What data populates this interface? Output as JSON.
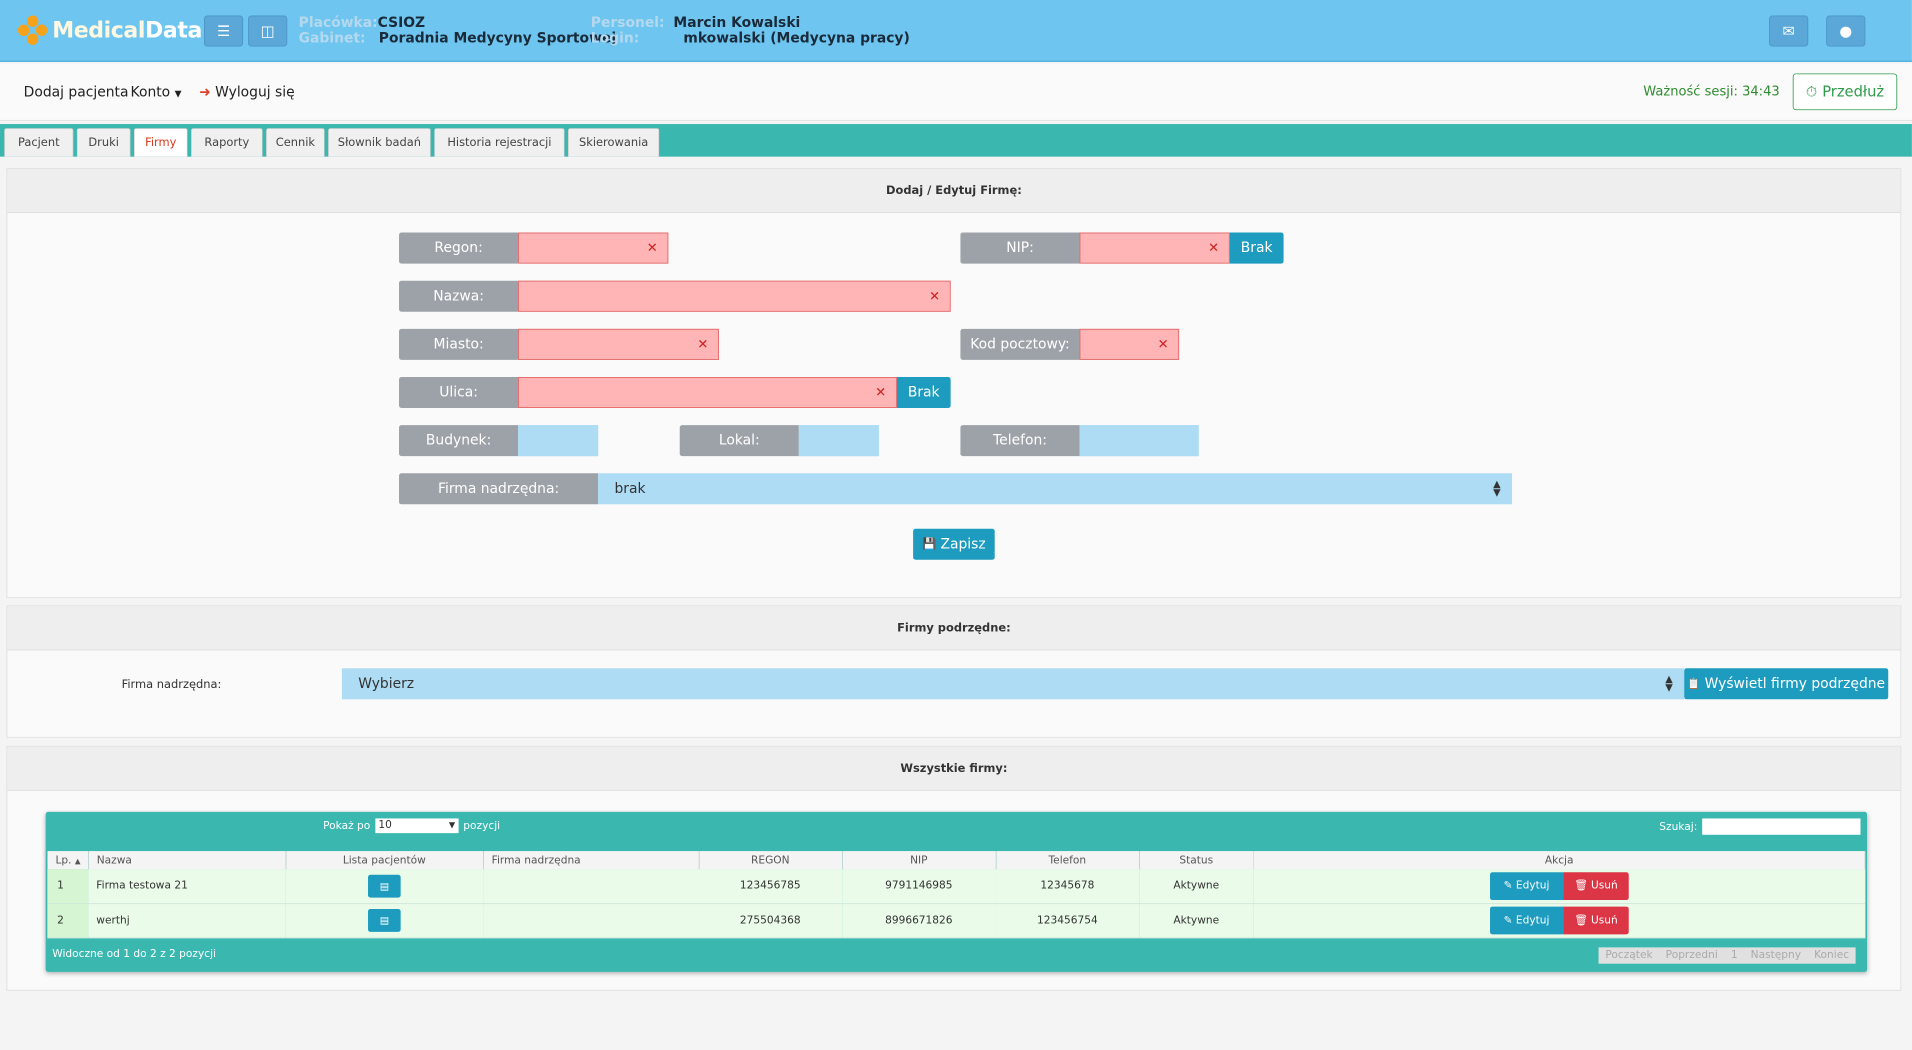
{
  "header": {
    "logo_text_1": "Medical",
    "logo_text_2": "Data",
    "placowka_label": "Placówka:",
    "placowka_value": "CSIOZ",
    "gabinet_label": "Gabinet:",
    "gabinet_value": "Poradnia Medycyny Sportowej",
    "personel_label": "Personel:",
    "personel_value": "Marcin Kowalski",
    "login_label": "Login:",
    "login_value": "mkowalski (Medycyna pracy)"
  },
  "menu": {
    "add_patient": "Dodaj pacjenta",
    "account": "Konto",
    "logout": "Wyloguj się",
    "session_label": "Ważność sesji: 34:43",
    "extend": "Przedłuż"
  },
  "tabs": [
    "Pacjent",
    "Druki",
    "Firmy",
    "Raporty",
    "Cennik",
    "Słownik badań",
    "Historia rejestracji",
    "Skierowania"
  ],
  "form": {
    "title": "Dodaj / Edytuj Firmę:",
    "regon": "Regon:",
    "nip": "NIP:",
    "brak": "Brak",
    "nazwa": "Nazwa:",
    "miasto": "Miasto:",
    "kod": "Kod pocztowy:",
    "ulica": "Ulica:",
    "budynek": "Budynek:",
    "lokal": "Lokal:",
    "telefon": "Telefon:",
    "firma_nadrzedna": "Firma nadrzędna:",
    "firma_nadrzedna_value": "brak",
    "save": "Zapisz"
  },
  "sub": {
    "title": "Firmy podrzędne:",
    "label": "Firma nadrzędna:",
    "select_value": "Wybierz",
    "show_btn": "Wyświetl firmy podrzędne"
  },
  "all": {
    "title": "Wszystkie firmy:",
    "show_prefix": "Pokaż po",
    "show_value": "10",
    "show_suffix": "pozycji",
    "search_label": "Szukaj:",
    "columns": [
      "Lp.",
      "Nazwa",
      "Lista pacjentów",
      "Firma nadrzędna",
      "REGON",
      "NIP",
      "Telefon",
      "Status",
      "Akcja"
    ],
    "rows": [
      {
        "lp": "1",
        "nazwa": "Firma testowa 21",
        "nadrzedna": "",
        "regon": "123456785",
        "nip": "9791146985",
        "telefon": "12345678",
        "status": "Aktywne"
      },
      {
        "lp": "2",
        "nazwa": "werthj",
        "nadrzedna": "",
        "regon": "275504368",
        "nip": "8996671826",
        "telefon": "123456754",
        "status": "Aktywne"
      }
    ],
    "edit": "Edytuj",
    "delete": "Usuń",
    "footer_info": "Widoczne od 1 do 2 z 2 pozycji",
    "pager": [
      "Początek",
      "Poprzedni",
      "1",
      "Następny",
      "Koniec"
    ]
  }
}
